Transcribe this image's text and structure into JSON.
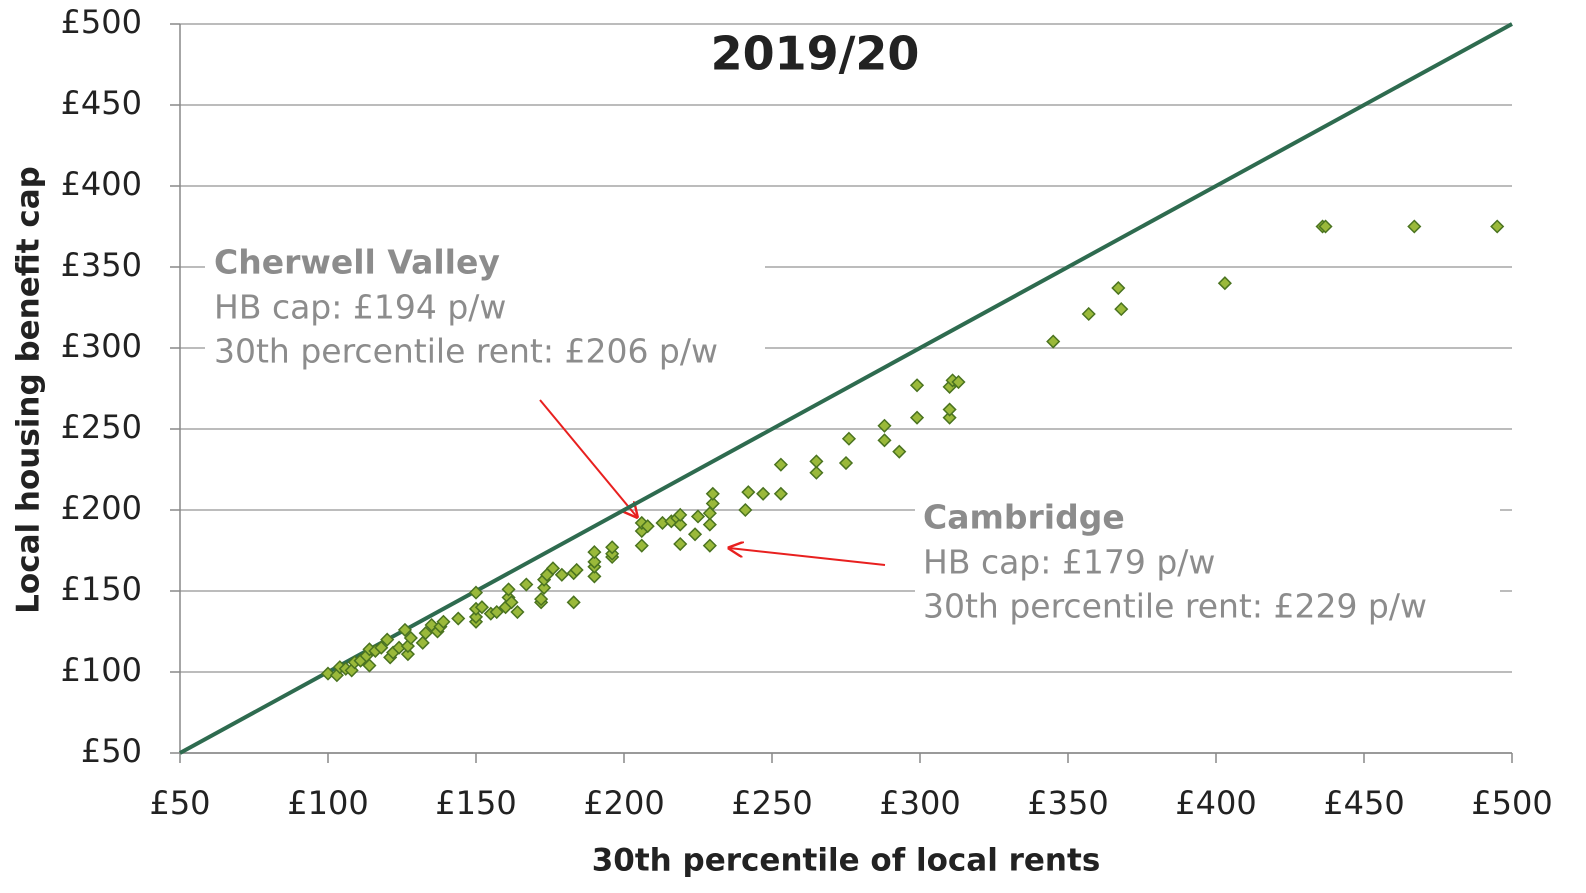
{
  "chart_data": {
    "type": "scatter",
    "title": "2019/20",
    "x_label": "30th percentile of local rents",
    "y_label": "Local housing benefit cap",
    "xlim": [
      50,
      500
    ],
    "ylim": [
      50,
      500
    ],
    "xticks": [
      {
        "value": 50,
        "label": "£50"
      },
      {
        "value": 100,
        "label": "£100"
      },
      {
        "value": 150,
        "label": "£150"
      },
      {
        "value": 200,
        "label": "£200"
      },
      {
        "value": 250,
        "label": "£250"
      },
      {
        "value": 300,
        "label": "£300"
      },
      {
        "value": 350,
        "label": "£350"
      },
      {
        "value": 400,
        "label": "£400"
      },
      {
        "value": 450,
        "label": "£450"
      },
      {
        "value": 500,
        "label": "£500"
      }
    ],
    "yticks": [
      {
        "value": 50,
        "label": "£50"
      },
      {
        "value": 100,
        "label": "£100"
      },
      {
        "value": 150,
        "label": "£150"
      },
      {
        "value": 200,
        "label": "£200"
      },
      {
        "value": 250,
        "label": "£250"
      },
      {
        "value": 300,
        "label": "£300"
      },
      {
        "value": 350,
        "label": "£350"
      },
      {
        "value": 400,
        "label": "£400"
      },
      {
        "value": 450,
        "label": "£450"
      },
      {
        "value": 500,
        "label": "£500"
      }
    ],
    "grid": true,
    "color": "#9ab93a",
    "x": [
      100,
      103,
      104,
      106,
      108,
      109,
      111,
      113,
      114,
      114,
      116,
      118,
      120,
      121,
      122,
      124,
      126,
      127,
      127,
      128,
      132,
      133,
      135,
      137,
      138,
      139,
      144,
      150,
      150,
      150,
      150,
      152,
      155,
      157,
      160,
      161,
      161,
      162,
      164,
      167,
      172,
      172,
      173,
      173,
      174,
      176,
      179,
      183,
      183,
      184,
      190,
      190,
      190,
      190,
      196,
      196,
      196,
      206,
      206,
      206,
      208,
      213,
      216,
      218,
      219,
      219,
      219,
      224,
      225,
      229,
      229,
      229,
      230,
      230,
      241,
      242,
      247,
      253,
      253,
      265,
      265,
      275,
      276,
      288,
      288,
      293,
      299,
      299,
      310,
      310,
      310,
      311,
      313,
      345,
      357,
      367,
      368,
      403,
      436,
      437,
      467,
      495
    ],
    "y": [
      99,
      98,
      103,
      102,
      101,
      106,
      107,
      110,
      104,
      114,
      113,
      115,
      120,
      109,
      112,
      115,
      126,
      111,
      116,
      121,
      118,
      124,
      129,
      125,
      128,
      131,
      133,
      131,
      134,
      139,
      149,
      140,
      136,
      137,
      140,
      146,
      151,
      143,
      137,
      154,
      143,
      145,
      152,
      157,
      160,
      164,
      160,
      143,
      161,
      163,
      159,
      165,
      168,
      174,
      171,
      173,
      177,
      178,
      187,
      192,
      190,
      192,
      193,
      195,
      179,
      191,
      197,
      185,
      196,
      178,
      191,
      198,
      204,
      210,
      200,
      211,
      210,
      210,
      228,
      223,
      230,
      229,
      244,
      243,
      252,
      236,
      257,
      277,
      257,
      262,
      276,
      280,
      279,
      304,
      321,
      337,
      324,
      340,
      375,
      375,
      375,
      375
    ],
    "annotations": [
      {
        "title": "Cherwell Valley",
        "lines": [
          "HB cap: £194 p/w",
          "30th percentile rent: £206 p/w"
        ]
      },
      {
        "title": "Cambridge",
        "lines": [
          "HB cap: £179 p/w",
          "30th percentile rent: £229 p/w"
        ]
      }
    ]
  }
}
